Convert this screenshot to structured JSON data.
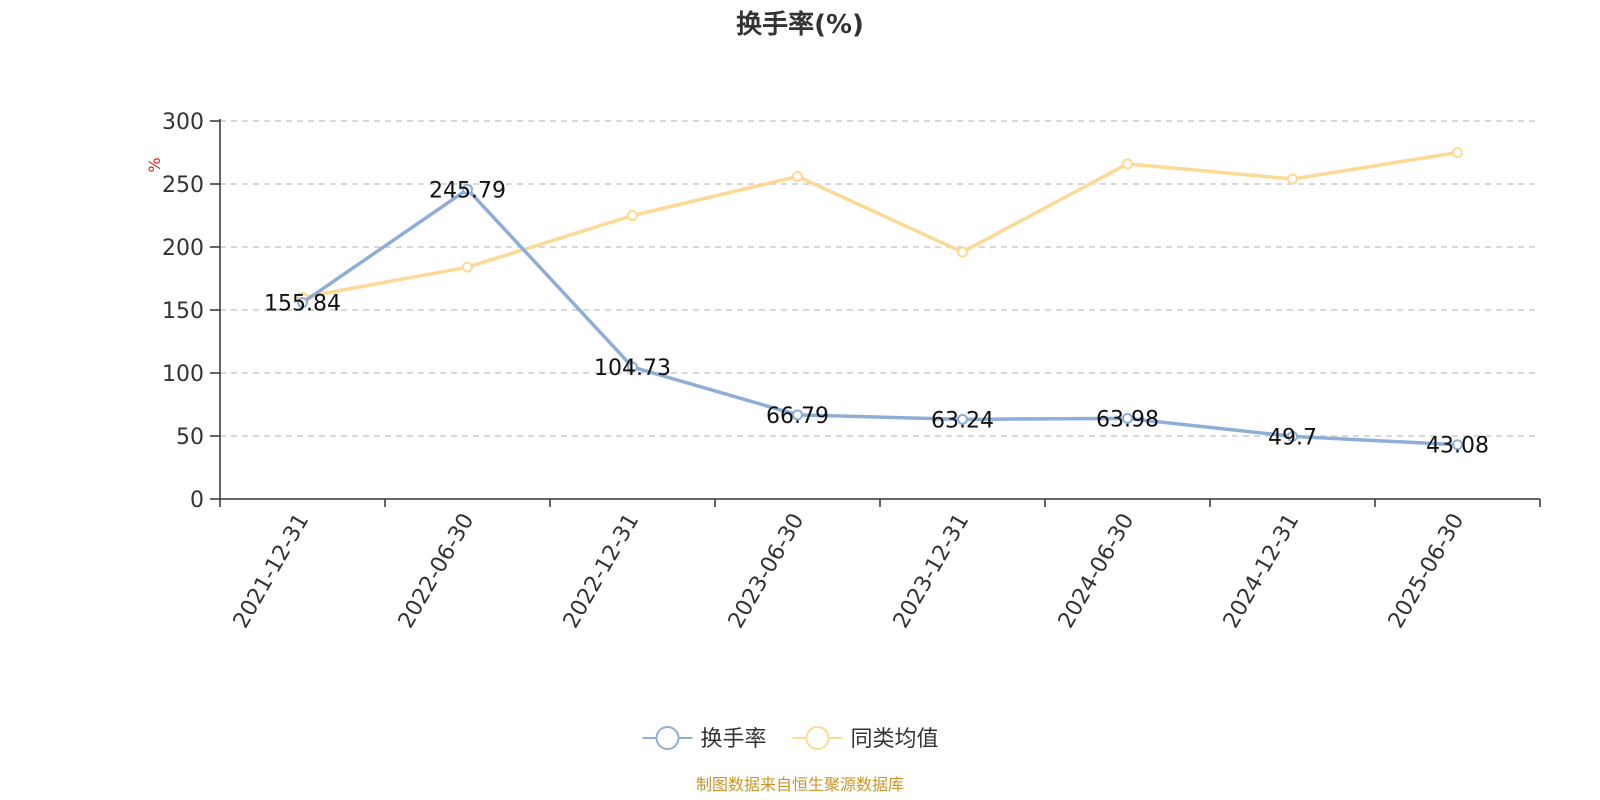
{
  "chart_data": {
    "type": "line",
    "title": "换手率(%)",
    "y_unit": "%",
    "ylim": [
      0,
      300
    ],
    "y_ticks": [
      0,
      50,
      100,
      150,
      200,
      250,
      300
    ],
    "grid": true,
    "legend_position": "bottom-center",
    "categories": [
      "2021-12-31",
      "2022-06-30",
      "2022-12-31",
      "2023-06-30",
      "2023-12-31",
      "2024-06-30",
      "2024-12-31",
      "2025-06-30"
    ],
    "series": [
      {
        "name": "换手率",
        "color": "#8eaed8",
        "values": [
          155.84,
          245.79,
          104.73,
          66.79,
          63.24,
          63.98,
          49.7,
          43.08
        ],
        "labels": [
          "155.84",
          "245.79",
          "104.73",
          "66.79",
          "63.24",
          "63.98",
          "49.7",
          "43.08"
        ]
      },
      {
        "name": "同类均值",
        "color": "#fcd995",
        "values": [
          160,
          184,
          225,
          256,
          196,
          266,
          254,
          275
        ]
      }
    ]
  },
  "source_text": "制图数据来自恒生聚源数据库"
}
